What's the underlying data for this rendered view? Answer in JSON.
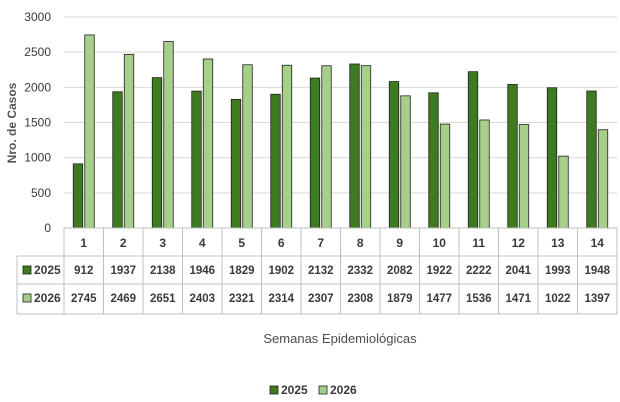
{
  "chart_data": {
    "type": "bar",
    "title": "",
    "xlabel": "Semanas Epidemiológicas",
    "ylabel": "Nro. de Casos",
    "ylim": [
      0,
      3000
    ],
    "yticks": [
      0,
      500,
      1000,
      1500,
      2000,
      2500,
      3000
    ],
    "categories": [
      "1",
      "2",
      "3",
      "4",
      "5",
      "6",
      "7",
      "8",
      "9",
      "10",
      "11",
      "12",
      "13",
      "14"
    ],
    "series": [
      {
        "name": "2025",
        "color": "#3e7a1f",
        "values": [
          912,
          1937,
          2138,
          1946,
          1829,
          1902,
          2132,
          2332,
          2082,
          1922,
          2222,
          2041,
          1993,
          1948
        ]
      },
      {
        "name": "2026",
        "color": "#a6d08a",
        "values": [
          2745,
          2469,
          2651,
          2403,
          2321,
          2314,
          2307,
          2308,
          1879,
          1477,
          1536,
          1471,
          1022,
          1397
        ]
      }
    ],
    "grid": true,
    "legend": "bottom",
    "data_table": true
  }
}
